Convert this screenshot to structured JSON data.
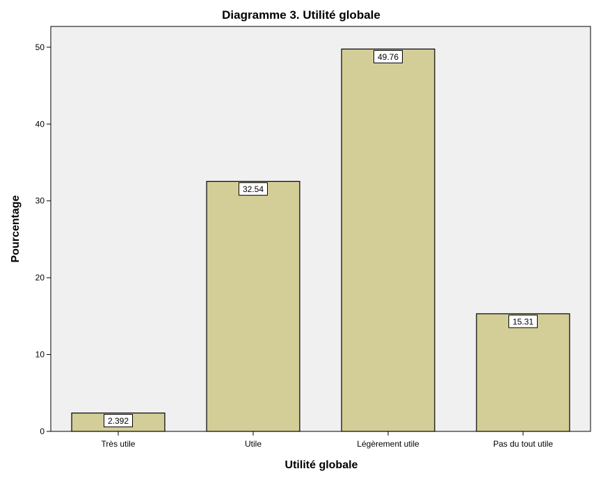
{
  "chart_data": {
    "type": "bar",
    "title": "Diagramme 3. Utilité globale",
    "xlabel": "Utilité globale",
    "ylabel": "Pourcentage",
    "categories": [
      "Très utile",
      "Utile",
      "Légèrement utile",
      "Pas du tout utile"
    ],
    "values": [
      2.392,
      32.54,
      49.76,
      15.31
    ],
    "data_labels": [
      "2.392",
      "32.54",
      "49.76",
      "15.31"
    ],
    "y_ticks": [
      0,
      10,
      20,
      30,
      40,
      50
    ],
    "ylim": [
      0,
      52.7
    ],
    "grid": false,
    "legend": "none",
    "colors": {
      "bar_fill": "#d3ce97",
      "bar_stroke": "#000000",
      "plot_background": "#f0f0f0",
      "label_box": "#ffffff"
    }
  }
}
